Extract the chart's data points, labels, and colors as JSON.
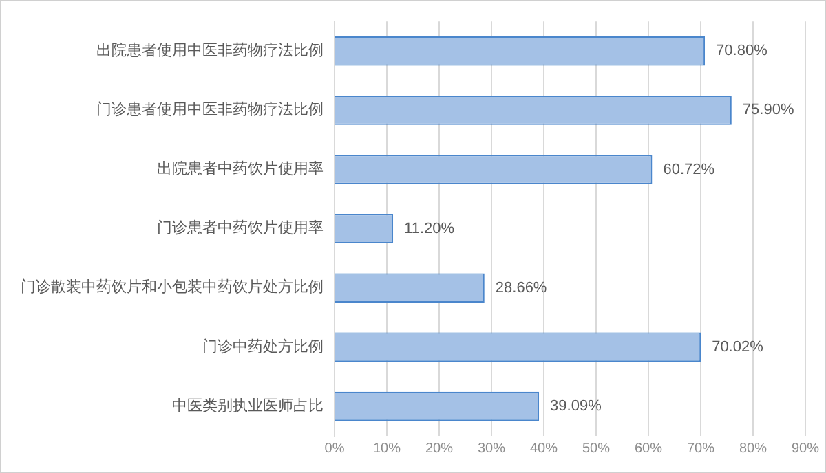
{
  "chart_data": {
    "type": "bar",
    "orientation": "horizontal",
    "categories": [
      "出院患者使用中医非药物疗法比例",
      "门诊患者使用中医非药物疗法比例",
      "出院患者中药饮片使用率",
      "门诊患者中药饮片使用率",
      "门诊散装中药饮片和小包装中药饮片处方比例",
      "门诊中药处方比例",
      "中医类别执业医师占比"
    ],
    "values": [
      70.8,
      75.9,
      60.72,
      11.2,
      28.66,
      70.02,
      39.09
    ],
    "value_labels": [
      "70.80%",
      "75.90%",
      "60.72%",
      "11.20%",
      "28.66%",
      "70.02%",
      "39.09%"
    ],
    "color": "#a4c1e6",
    "xlim": [
      0,
      90
    ],
    "xticks": [
      {
        "value": 0,
        "label": "0%"
      },
      {
        "value": 10,
        "label": "10%"
      },
      {
        "value": 20,
        "label": "20%"
      },
      {
        "value": 30,
        "label": "30%"
      },
      {
        "value": 40,
        "label": "40%"
      },
      {
        "value": 50,
        "label": "50%"
      },
      {
        "value": 60,
        "label": "60%"
      },
      {
        "value": 70,
        "label": "70%"
      },
      {
        "value": 80,
        "label": "80%"
      },
      {
        "value": 90,
        "label": "90%"
      }
    ],
    "grid": "x",
    "legend": false
  }
}
